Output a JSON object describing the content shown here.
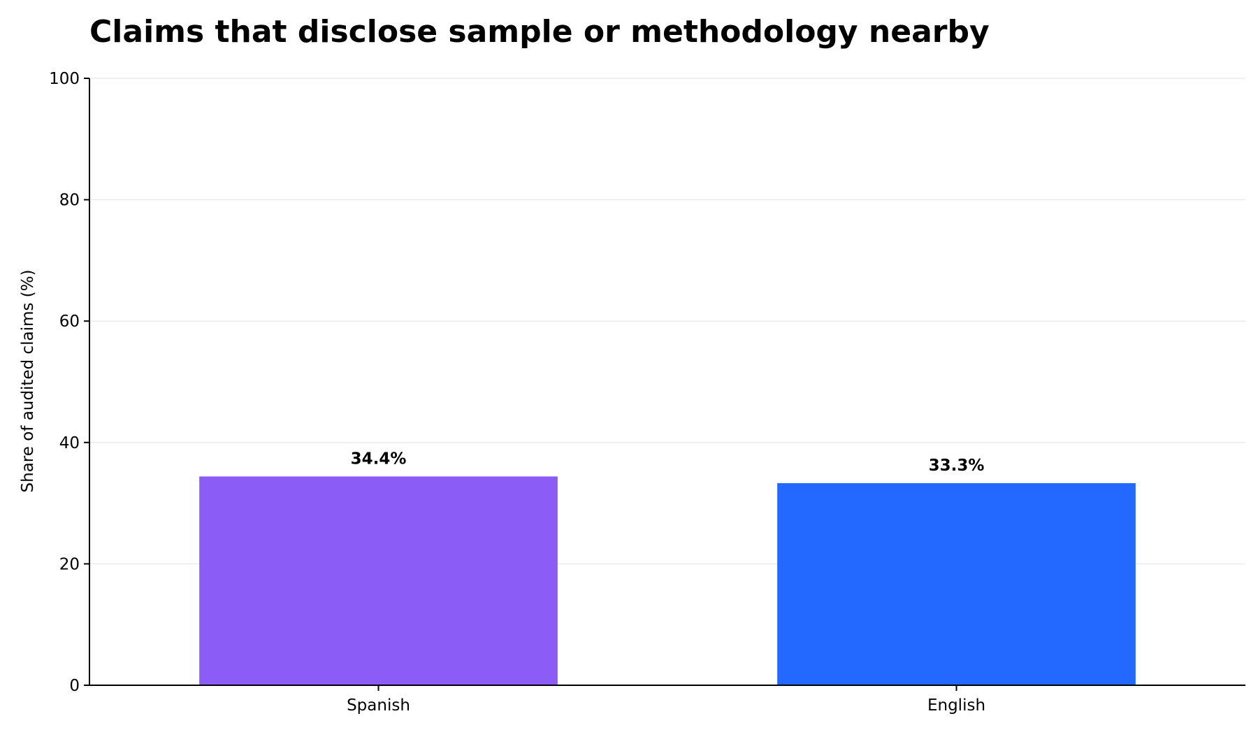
{
  "chart_data": {
    "type": "bar",
    "title": "Claims that disclose sample or methodology nearby",
    "xlabel": "",
    "ylabel": "Share of audited claims (%)",
    "ylim": [
      0,
      100
    ],
    "yticks": [
      0,
      20,
      40,
      60,
      80,
      100
    ],
    "grid": "horizontal",
    "categories": [
      "Spanish",
      "English"
    ],
    "values": [
      34.4,
      33.3
    ],
    "data_labels": [
      "34.4%",
      "33.3%"
    ],
    "colors": [
      "#8b5cf6",
      "#2469ff"
    ]
  }
}
